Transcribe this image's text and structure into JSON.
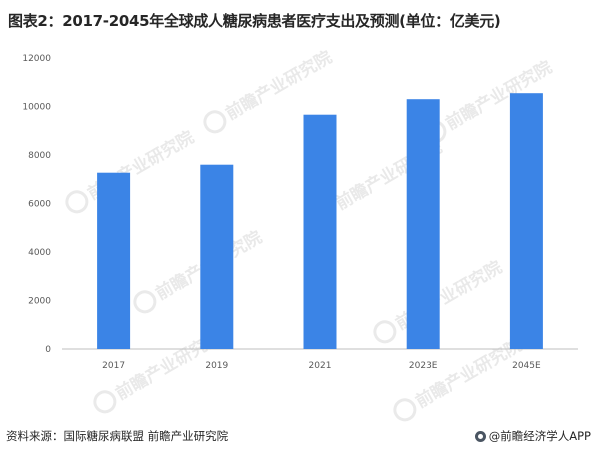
{
  "title": "图表2：2017-2045年全球成人糖尿病患者医疗支出及预测(单位：亿美元)",
  "footer": {
    "source": "资料来源：国际糖尿病联盟 前瞻产业研究院",
    "brand": "@前瞻经济学人APP"
  },
  "watermark": {
    "text": "前瞻产业研究院",
    "icon": "qianzhan-logo-icon"
  },
  "colors": {
    "bar": "#3b84e6",
    "axis": "#bfbfbf"
  },
  "chart_data": {
    "type": "bar",
    "title": "图表2：2017-2045年全球成人糖尿病患者医疗支出及预测(单位：亿美元)",
    "categories": [
      "2017",
      "2019",
      "2021",
      "2023E",
      "2045E"
    ],
    "values": [
      7270,
      7600,
      9660,
      10300,
      10550
    ],
    "xlabel": "",
    "ylabel": "",
    "ylim": [
      0,
      12000
    ],
    "yticks": [
      "0",
      "2000",
      "4000",
      "6000",
      "8000",
      "10000",
      "12000"
    ],
    "grid": false,
    "legend": "none"
  }
}
